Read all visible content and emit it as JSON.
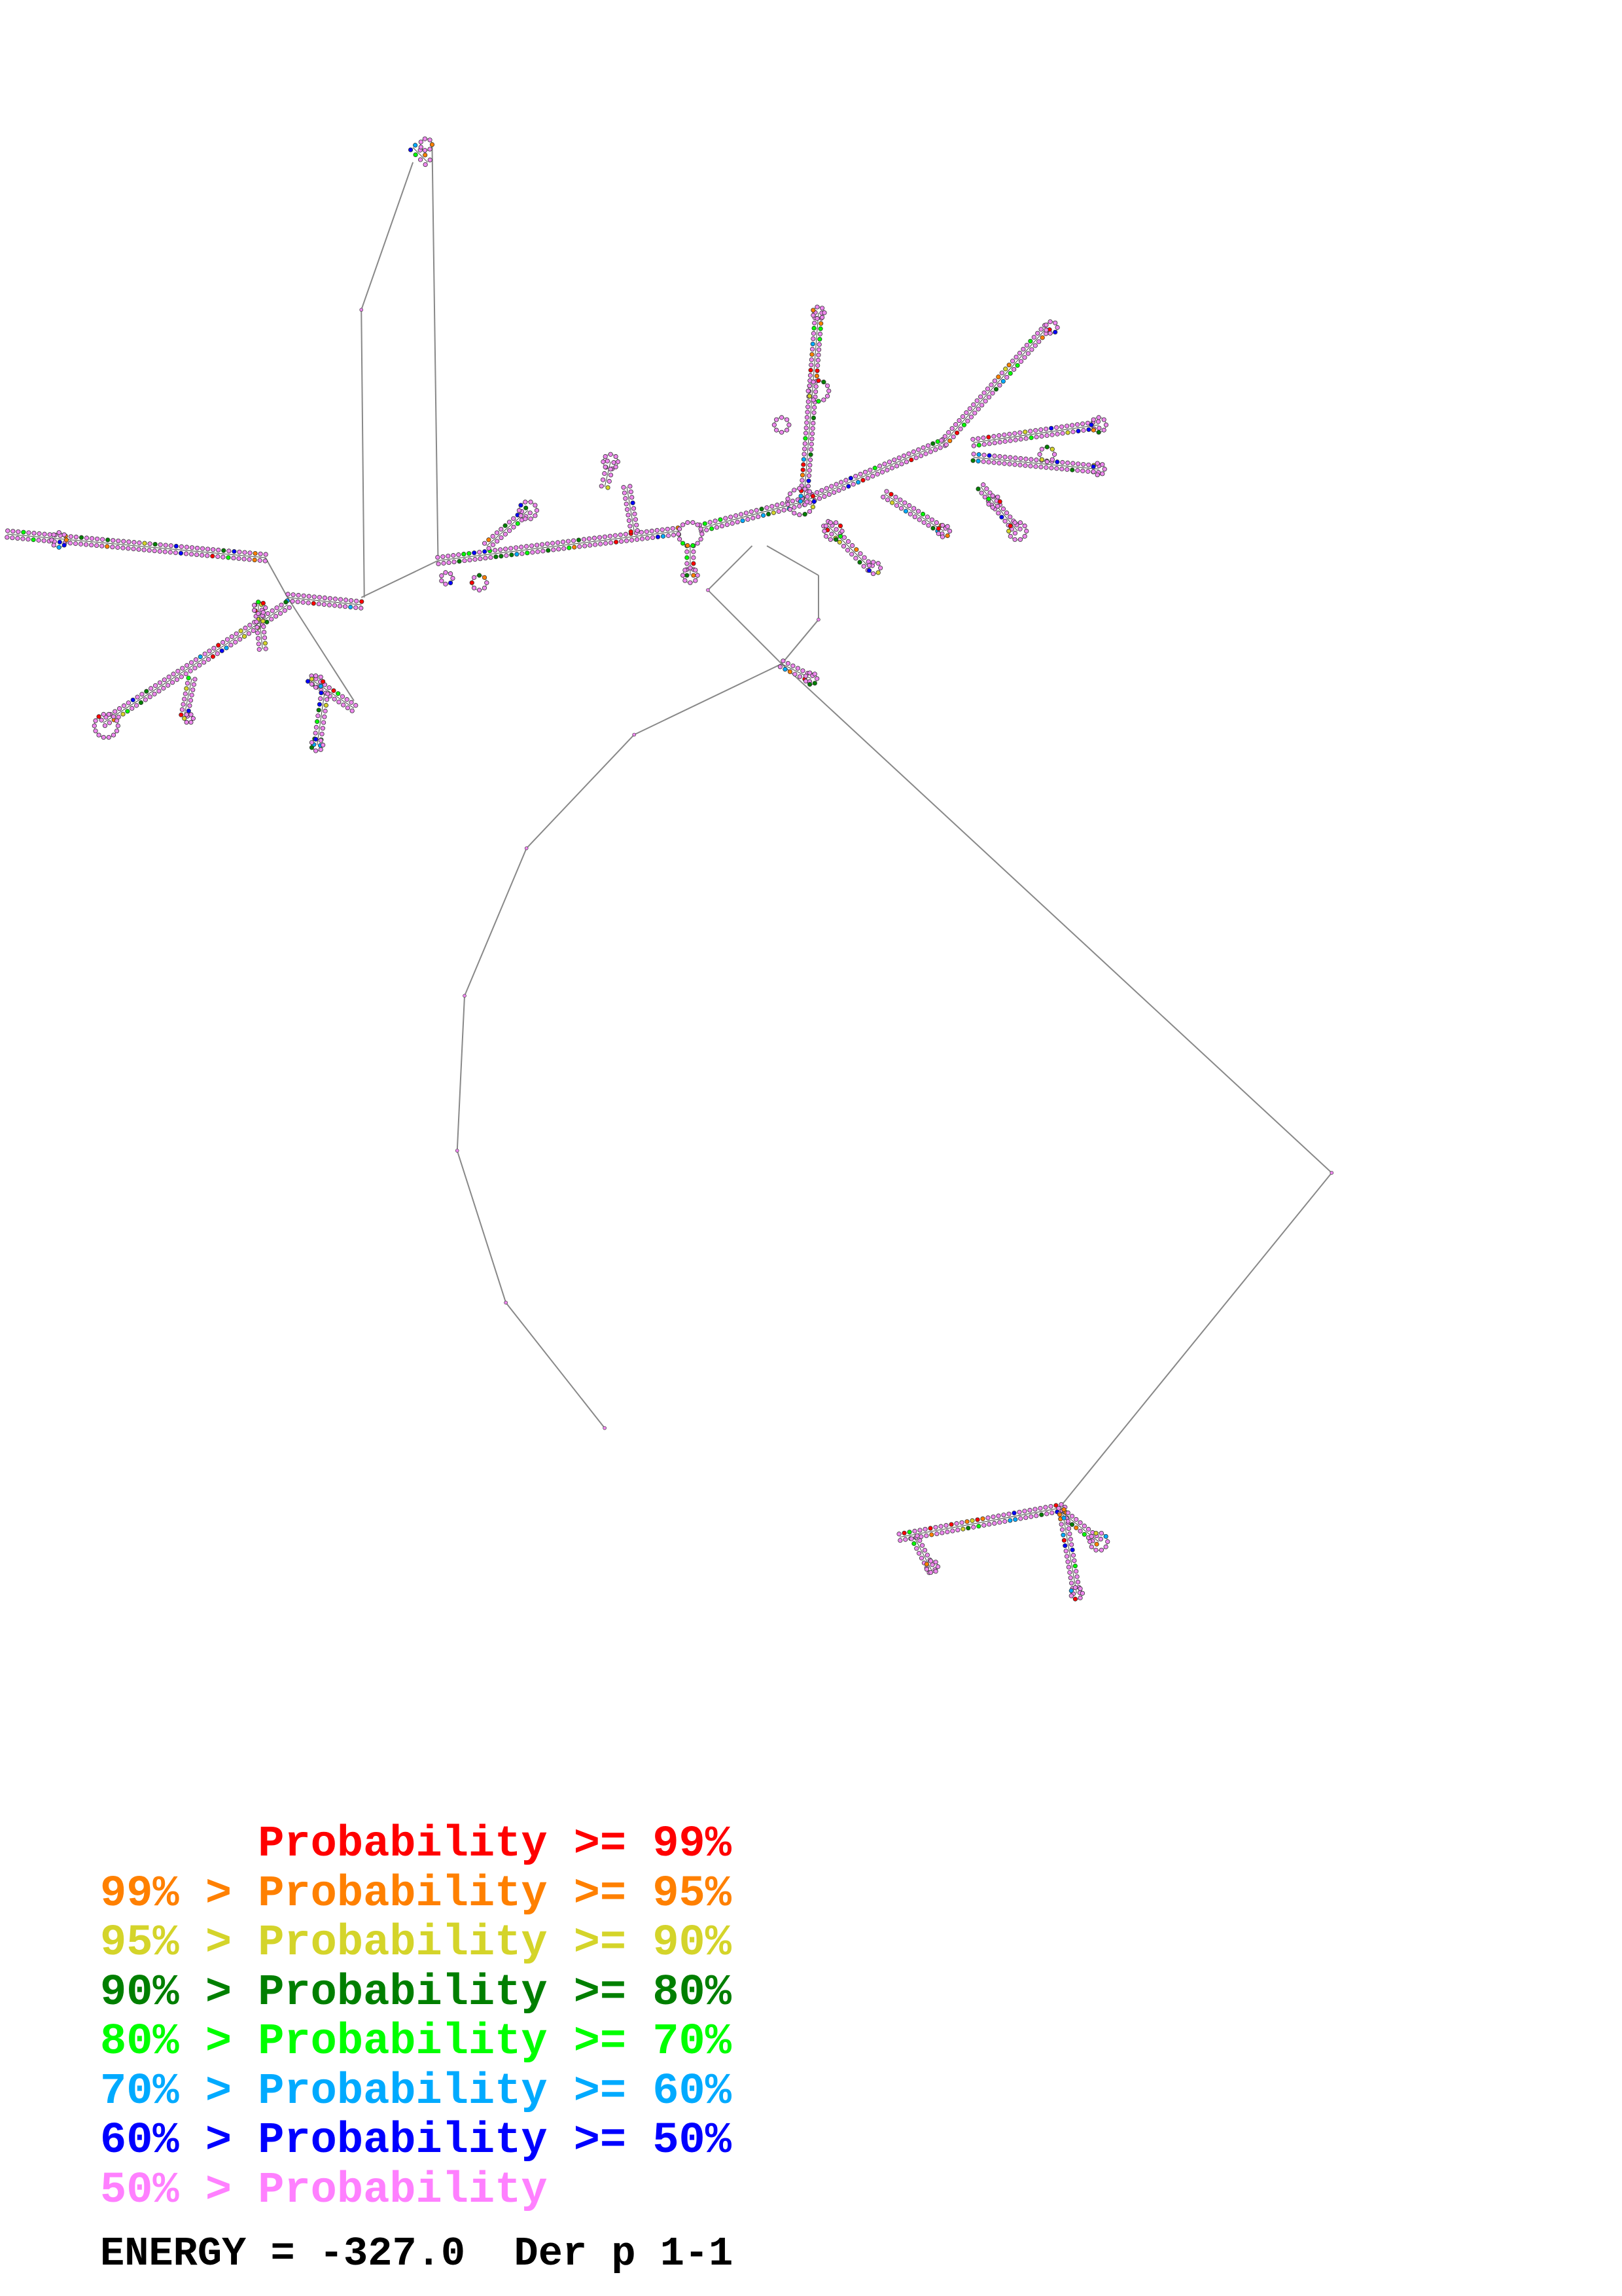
{
  "diagram": {
    "type": "rna-secondary-structure",
    "base_color_default": "#ee88ee",
    "backbone_color": "#888888"
  },
  "legend": [
    {
      "prefix": "      ",
      "text": "Probability >= 99%",
      "color": "#ff0000"
    },
    {
      "prefix": "99% > ",
      "text": "Probability >= 95%",
      "color": "#ff8000"
    },
    {
      "prefix": "95% > ",
      "text": "Probability >= 90%",
      "color": "#d4d42a"
    },
    {
      "prefix": "90% > ",
      "text": "Probability >= 80%",
      "color": "#007f00"
    },
    {
      "prefix": "80% > ",
      "text": "Probability >= 70%",
      "color": "#00ff00"
    },
    {
      "prefix": "70% > ",
      "text": "Probability >= 60%",
      "color": "#00aaff"
    },
    {
      "prefix": "60% > ",
      "text": "Probability >= 50%",
      "color": "#0000ff"
    },
    {
      "prefix": "50% > ",
      "text": "Probability",
      "color": "#ff80ff"
    }
  ],
  "energy": {
    "label": "ENERGY = -327.0  Der p 1-1"
  }
}
